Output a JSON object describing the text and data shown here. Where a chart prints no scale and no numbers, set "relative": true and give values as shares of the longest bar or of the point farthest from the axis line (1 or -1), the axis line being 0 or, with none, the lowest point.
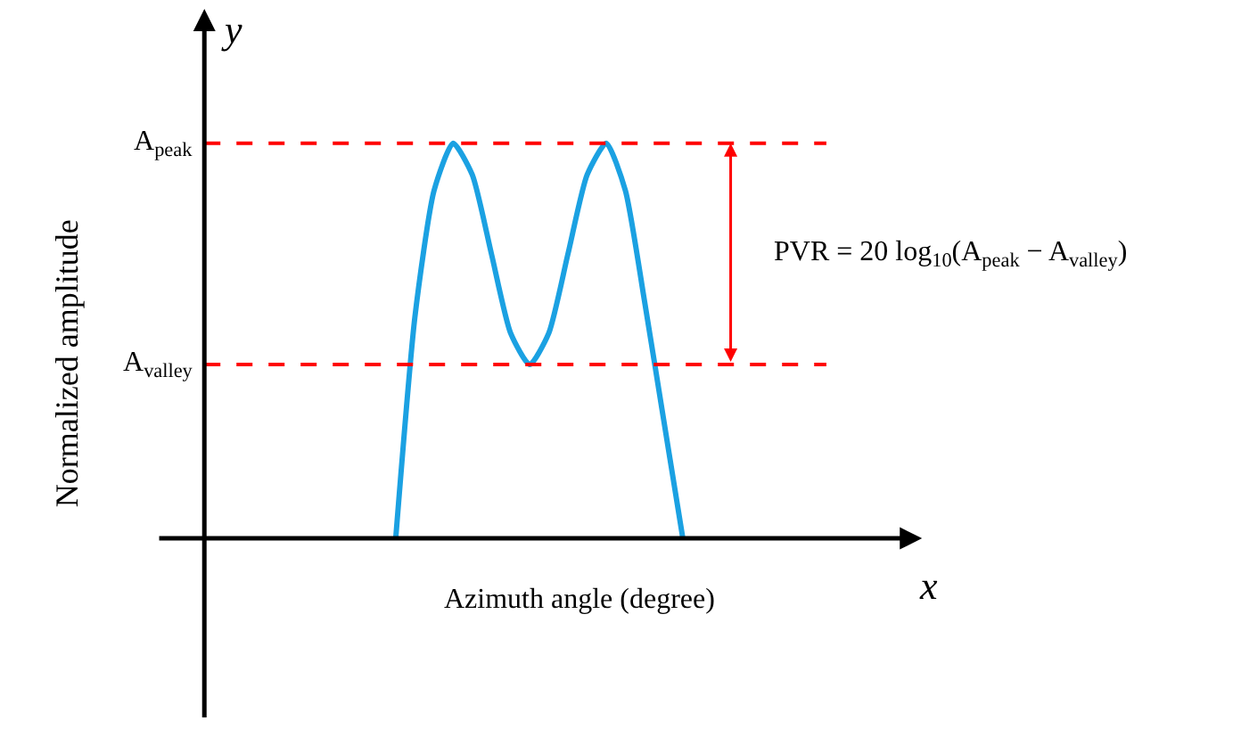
{
  "chart_data": {
    "type": "line",
    "relative": true,
    "xlabel": "Azimuth angle (degree)",
    "ylabel": "Normalized amplitude",
    "categories": [
      null,
      null,
      null,
      null,
      null,
      null,
      null,
      null,
      null,
      null,
      null,
      null,
      null,
      null,
      null,
      null,
      null,
      null,
      null,
      null,
      null,
      null,
      null,
      null,
      null,
      null,
      null,
      null,
      null,
      null,
      null,
      null,
      null,
      null,
      null,
      null,
      null,
      null,
      null,
      null,
      null
    ],
    "series": [
      {
        "color": "#1ba1e2",
        "values": [
          null,
          null,
          null,
          null,
          null,
          null,
          null,
          null,
          null,
          null,
          null,
          null,
          null,
          0,
          0.56,
          0.88,
          1.0,
          0.92,
          0.72,
          0.52,
          0.44,
          0.52,
          0.72,
          0.92,
          1.0,
          0.88,
          0.6,
          0.3,
          0,
          null,
          null,
          null,
          null,
          null,
          null,
          null,
          null,
          null,
          null,
          null,
          null
        ]
      }
    ],
    "ref_lines": [
      {
        "axis": "y",
        "value": 1,
        "label": "A$_{peak}$",
        "color": "#ff0000",
        "line_style": "dashed"
      },
      {
        "axis": "y",
        "value": 0.44,
        "label": "A$_{valley}$",
        "color": "#ff0000",
        "line_style": "dashed"
      }
    ],
    "annotations": [
      "PVR = 20 log$_{10}$(A$_{peak}$ − A$_{valley}$)",
      "x",
      "y"
    ],
    "legend": false,
    "marker": "none",
    "line_style": "solid"
  }
}
